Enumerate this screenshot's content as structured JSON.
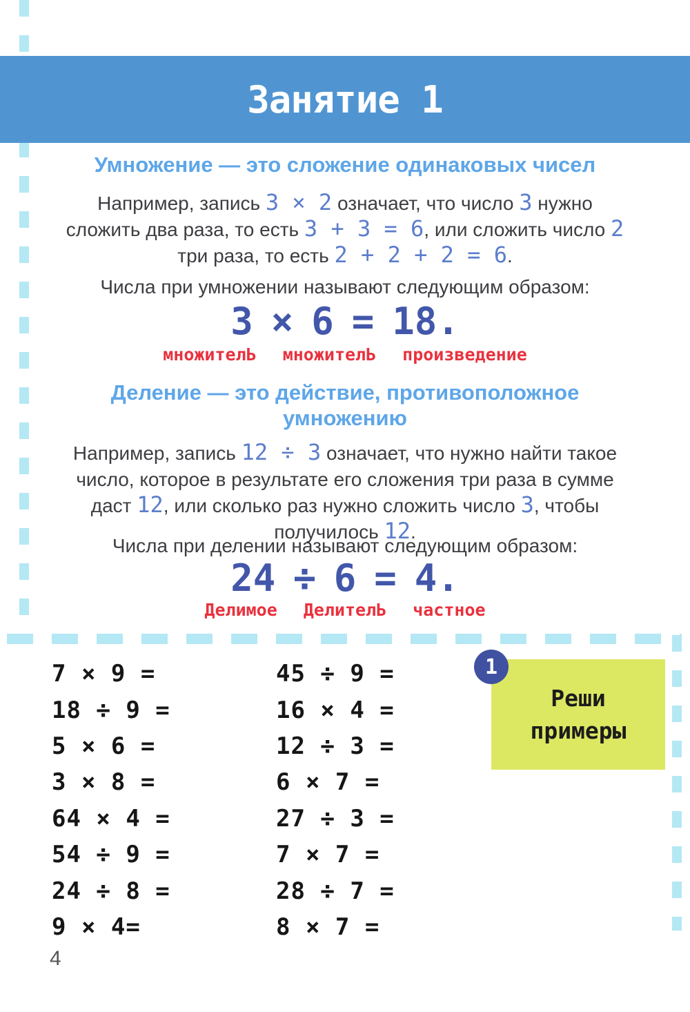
{
  "colors": {
    "banner_blue": "#5095d2",
    "heading_blue": "#5ea6e8",
    "inline_number_blue": "#5b7dcb",
    "equation_blue": "#4257aa",
    "label_red": "#e8323e",
    "dash_cyan": "#b4e8f4",
    "badge_indigo": "#3f51a0",
    "task_yellow": "#dce762"
  },
  "banner": {
    "title": "Занятие 1"
  },
  "multiplication": {
    "heading": "Умножение — это сложение одинаковых чисел",
    "paragraph": [
      {
        "text": "Например, запись ",
        "style": "body"
      },
      {
        "text": "3 × 2",
        "style": "num"
      },
      {
        "text": " означает, что число ",
        "style": "body"
      },
      {
        "text": "3",
        "style": "num"
      },
      {
        "text": " нужно сложить два раза, то есть ",
        "style": "body"
      },
      {
        "text": "3 + 3 = 6",
        "style": "num"
      },
      {
        "text": ", или сложить число ",
        "style": "body"
      },
      {
        "text": "2",
        "style": "num"
      },
      {
        "text": " три раза, то есть ",
        "style": "body"
      },
      {
        "text": "2 + 2 + 2 = 6",
        "style": "num"
      },
      {
        "text": ".",
        "style": "body"
      }
    ],
    "naming_intro": "Числа при умножении называют следующим образом:",
    "equation_parts": [
      "3",
      "×",
      "6",
      "=",
      "18."
    ],
    "equation_labels": [
      "множителЬ",
      "множителЬ",
      "произведение"
    ]
  },
  "division": {
    "heading": "Деление — это действие, противоположное умножению",
    "paragraph": [
      {
        "text": "Например, запись ",
        "style": "body"
      },
      {
        "text": "12 ÷ 3",
        "style": "num"
      },
      {
        "text": " означает, что нужно найти такое число, которое в результате его сложения три раза в сумме даст ",
        "style": "body"
      },
      {
        "text": "12",
        "style": "num"
      },
      {
        "text": ", или сколько раз нужно сложить число ",
        "style": "body"
      },
      {
        "text": "3",
        "style": "num"
      },
      {
        "text": ", чтобы получилось ",
        "style": "body"
      },
      {
        "text": "12",
        "style": "num"
      },
      {
        "text": ".",
        "style": "body"
      }
    ],
    "naming_intro": "Числа при делении называют следующим образом:",
    "equation_parts": [
      "24",
      "÷",
      "6",
      "=",
      "4."
    ],
    "equation_labels": [
      "Делимое",
      "ДелителЬ",
      "частное"
    ]
  },
  "exercises": {
    "badge_number": "1",
    "task_title": [
      "Реши",
      "примеры"
    ],
    "left_column": [
      "7 × 9 =",
      "18 ÷ 9 =",
      "5 × 6 =",
      "3 × 8 =",
      "64 × 4 =",
      "54 ÷ 9 =",
      "24 ÷ 8 =",
      "9 × 4="
    ],
    "right_column": [
      "45 ÷ 9 =",
      "16 × 4 =",
      "12 ÷ 3 =",
      "6 × 7 =",
      "27 ÷ 3 =",
      "7 × 7 =",
      "28 ÷ 7 =",
      "8 × 7 ="
    ]
  },
  "footer": {
    "page_number": "4"
  }
}
